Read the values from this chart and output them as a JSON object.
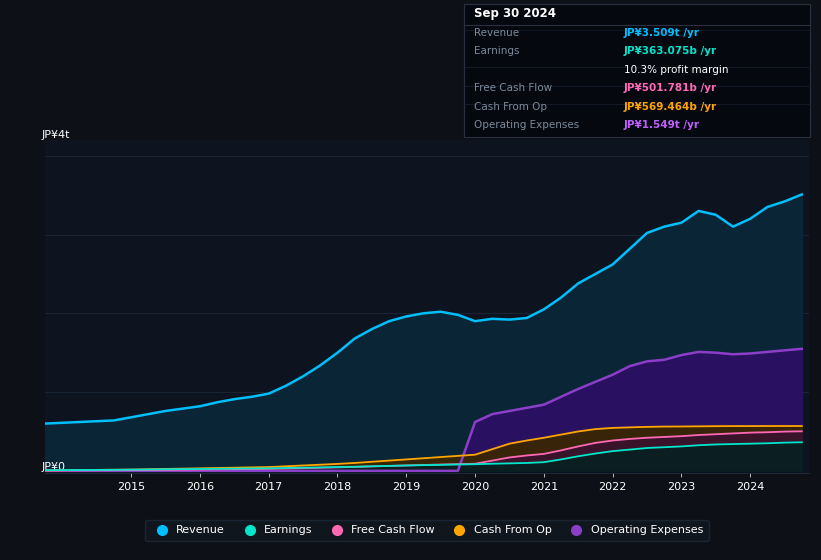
{
  "bg_color": "#0d1117",
  "plot_bg_color": "#0d1420",
  "grid_color": "#1e2d3d",
  "ylabel_text": "JP¥4t",
  "ylabel0_text": "JP¥0",
  "info_box": {
    "title": "Sep 30 2024",
    "rows": [
      {
        "label": "Revenue",
        "value": "JP¥3.509t /yr",
        "value_color": "#00bfff",
        "bold_value": true
      },
      {
        "label": "Earnings",
        "value": "JP¥363.075b /yr",
        "value_color": "#00e5cc",
        "bold_value": true
      },
      {
        "label": "",
        "value": "10.3% profit margin",
        "value_color": "#ffffff",
        "bold_value": false
      },
      {
        "label": "Free Cash Flow",
        "value": "JP¥501.781b /yr",
        "value_color": "#ff69b4",
        "bold_value": true
      },
      {
        "label": "Cash From Op",
        "value": "JP¥569.464b /yr",
        "value_color": "#ffa500",
        "bold_value": true
      },
      {
        "label": "Operating Expenses",
        "value": "JP¥1.549t /yr",
        "value_color": "#bf5fff",
        "bold_value": true
      }
    ]
  },
  "series": {
    "years": [
      2013.75,
      2014.0,
      2014.25,
      2014.5,
      2014.75,
      2015.0,
      2015.25,
      2015.5,
      2015.75,
      2016.0,
      2016.25,
      2016.5,
      2016.75,
      2017.0,
      2017.25,
      2017.5,
      2017.75,
      2018.0,
      2018.25,
      2018.5,
      2018.75,
      2019.0,
      2019.25,
      2019.5,
      2019.75,
      2020.0,
      2020.25,
      2020.5,
      2020.75,
      2021.0,
      2021.25,
      2021.5,
      2021.75,
      2022.0,
      2022.25,
      2022.5,
      2022.75,
      2023.0,
      2023.25,
      2023.5,
      2023.75,
      2024.0,
      2024.25,
      2024.5,
      2024.75
    ],
    "revenue": [
      600,
      610,
      620,
      630,
      640,
      680,
      720,
      760,
      790,
      820,
      870,
      910,
      940,
      980,
      1080,
      1200,
      1340,
      1500,
      1680,
      1800,
      1900,
      1960,
      2000,
      2020,
      1980,
      1900,
      1930,
      1920,
      1940,
      2050,
      2200,
      2380,
      2500,
      2620,
      2820,
      3020,
      3100,
      3150,
      3300,
      3250,
      3100,
      3200,
      3350,
      3420,
      3509
    ],
    "earnings": [
      8,
      10,
      11,
      12,
      13,
      15,
      17,
      20,
      22,
      24,
      26,
      28,
      30,
      32,
      36,
      40,
      44,
      48,
      52,
      58,
      63,
      68,
      72,
      76,
      80,
      84,
      90,
      95,
      100,
      110,
      145,
      185,
      220,
      250,
      270,
      290,
      300,
      310,
      325,
      335,
      340,
      345,
      350,
      358,
      363
    ],
    "free_cash_flow": [
      4,
      5,
      6,
      7,
      8,
      9,
      11,
      13,
      15,
      17,
      19,
      21,
      23,
      25,
      29,
      34,
      39,
      44,
      50,
      56,
      62,
      68,
      74,
      80,
      85,
      90,
      130,
      170,
      195,
      215,
      260,
      310,
      355,
      385,
      405,
      420,
      430,
      440,
      455,
      465,
      475,
      485,
      490,
      498,
      502
    ],
    "cash_from_op": [
      6,
      8,
      10,
      12,
      14,
      16,
      20,
      24,
      28,
      32,
      36,
      40,
      44,
      48,
      58,
      68,
      78,
      88,
      100,
      115,
      130,
      145,
      160,
      175,
      190,
      205,
      275,
      345,
      385,
      420,
      460,
      500,
      530,
      545,
      552,
      558,
      562,
      563,
      565,
      567,
      568,
      568,
      569,
      569,
      569
    ],
    "operating_expenses": [
      0,
      0,
      0,
      0,
      0,
      0,
      0,
      0,
      0,
      0,
      0,
      0,
      0,
      0,
      0,
      0,
      0,
      0,
      0,
      0,
      0,
      0,
      0,
      0,
      0,
      620,
      720,
      760,
      800,
      840,
      940,
      1040,
      1130,
      1220,
      1330,
      1390,
      1410,
      1470,
      1510,
      1500,
      1480,
      1490,
      1510,
      1530,
      1549
    ]
  },
  "colors": {
    "revenue_line": "#00bfff",
    "revenue_fill": "#0a2535",
    "earnings_line": "#00e5cc",
    "earnings_fill": "#062020",
    "free_cash_flow_line": "#ff69b4",
    "free_cash_flow_fill": "#3a1030",
    "cash_from_op_line": "#ffa500",
    "cash_from_op_fill": "#3a2800",
    "op_exp_line": "#8b3fc8",
    "op_exp_fill": "#2a1060"
  },
  "legend": [
    {
      "label": "Revenue",
      "color": "#00bfff"
    },
    {
      "label": "Earnings",
      "color": "#00e5cc"
    },
    {
      "label": "Free Cash Flow",
      "color": "#ff69b4"
    },
    {
      "label": "Cash From Op",
      "color": "#ffa500"
    },
    {
      "label": "Operating Expenses",
      "color": "#8b3fc8"
    }
  ]
}
